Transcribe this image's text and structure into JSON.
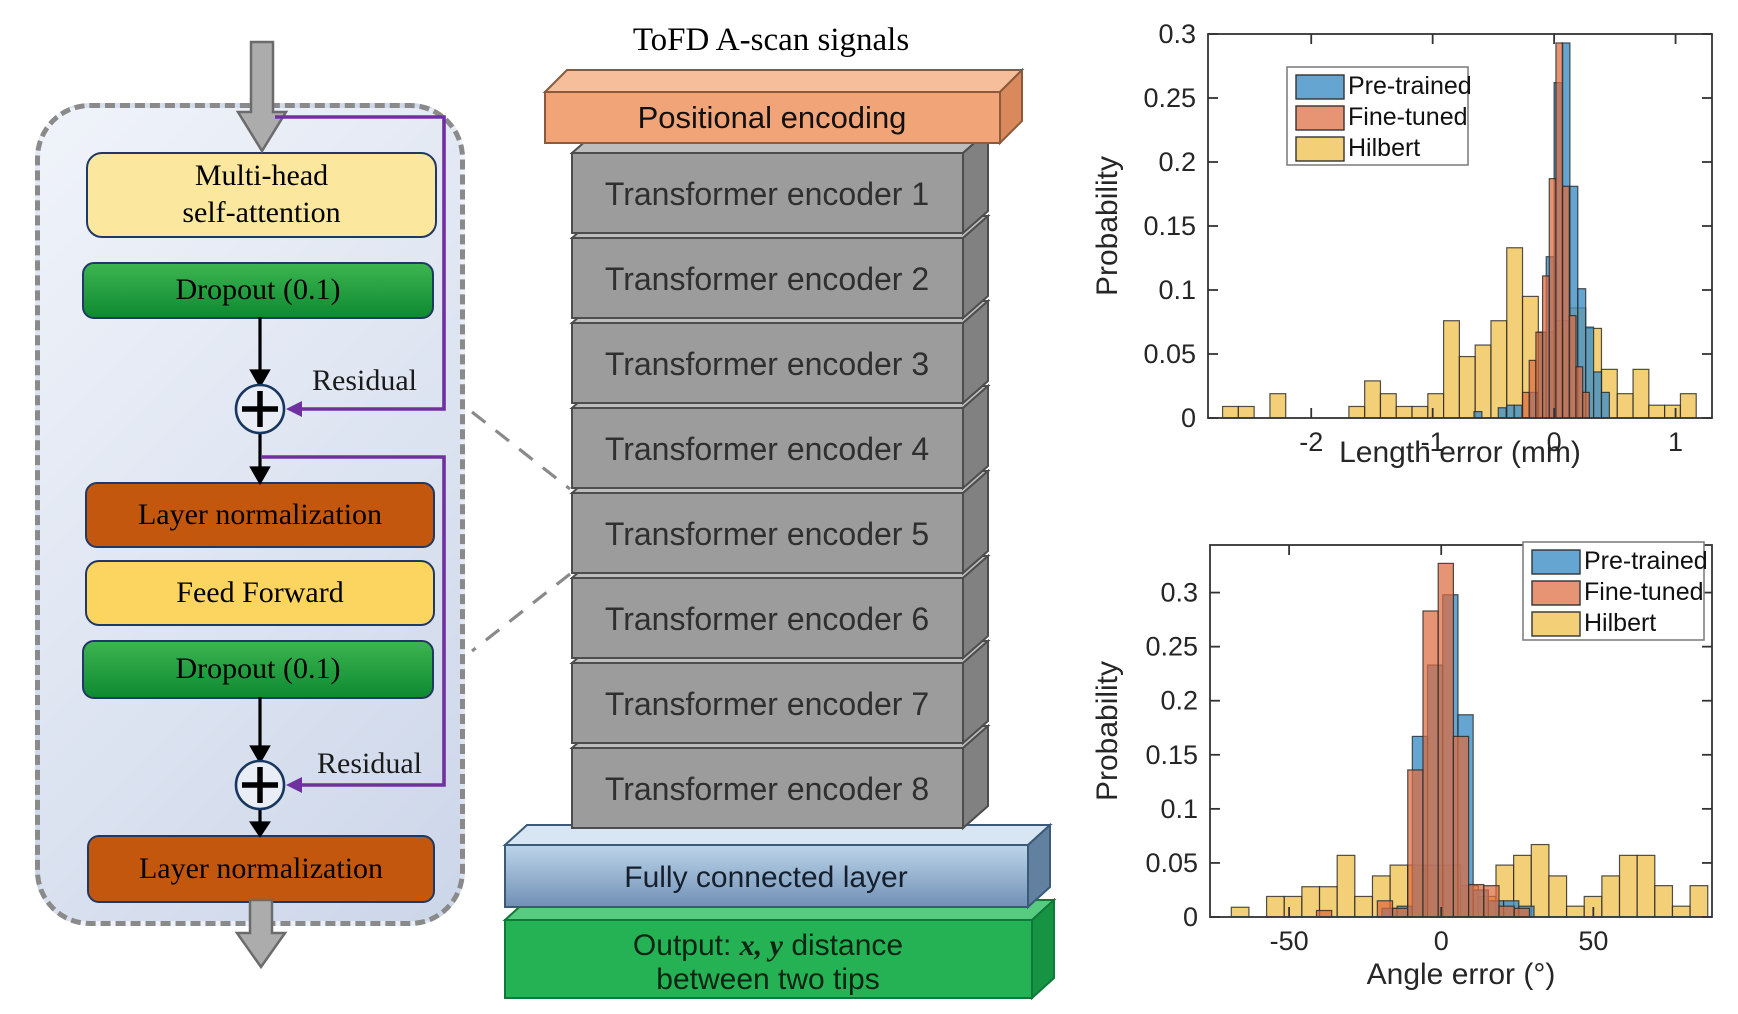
{
  "left_block": {
    "mha_line1": "Multi-head",
    "mha_line2": "self-attention",
    "dropout1": "Dropout (0.1)",
    "residual1": "Residual",
    "layernorm1": "Layer normalization",
    "feed_forward": "Feed Forward",
    "dropout2": "Dropout (0.1)",
    "residual2": "Residual",
    "layernorm2": "Layer normalization"
  },
  "stack": {
    "title": "ToFD A-scan signals",
    "positional": "Positional encoding",
    "encoders": [
      "Transformer encoder 1",
      "Transformer encoder 2",
      "Transformer encoder 3",
      "Transformer encoder 4",
      "Transformer encoder 5",
      "Transformer encoder 6",
      "Transformer encoder 7",
      "Transformer encoder 8"
    ],
    "fully_connected": "Fully connected layer",
    "output_prefix": "Output: ",
    "output_math": "x, y",
    "output_suffix": " distance",
    "output_line2": "between two tips"
  },
  "colors": {
    "purple_residual_line": "#7030A0",
    "dashed_border": "#8A8A8A",
    "mha_fill": "#FBE79D",
    "dropout_fill": "#1E9E3E",
    "layernorm_fill": "#C4570E",
    "feedforward_fill": "#FBD55F",
    "encoder_slab": "#9C9C9C",
    "positional_slab": "#F1A478",
    "fully_connected_slab": "#8FB0CE",
    "output_slab": "#24B254",
    "pretrained": "#3F8FC5",
    "finetuned": "#DE6B3F",
    "hilbert": "#EFC04A"
  },
  "chart_data": [
    {
      "type": "bar",
      "subtype": "overlaid-histogram",
      "title": "",
      "xlabel": "Length error (mm)",
      "ylabel": "Probability",
      "xlim": [
        -2.85,
        1.3
      ],
      "ylim": [
        0,
        0.3
      ],
      "xticks": [
        -2,
        -1,
        0,
        1
      ],
      "yticks": [
        0,
        0.05,
        0.1,
        0.15,
        0.2,
        0.25,
        0.3
      ],
      "grid": false,
      "legend": [
        "Pre-trained",
        "Fine-tuned",
        "Hilbert"
      ],
      "legend_position": "upper-left-inset",
      "series": [
        {
          "name": "Hilbert",
          "color": "#EFC04A",
          "alpha": 0.75,
          "bin_width": 0.13,
          "bars": [
            [
              -2.73,
              0.009
            ],
            [
              -2.6,
              0.009
            ],
            [
              -2.34,
              0.019
            ],
            [
              -1.69,
              0.009
            ],
            [
              -1.56,
              0.029
            ],
            [
              -1.43,
              0.019
            ],
            [
              -1.3,
              0.009
            ],
            [
              -1.17,
              0.009
            ],
            [
              -1.04,
              0.019
            ],
            [
              -0.91,
              0.076
            ],
            [
              -0.78,
              0.048
            ],
            [
              -0.65,
              0.057
            ],
            [
              -0.52,
              0.076
            ],
            [
              -0.39,
              0.133
            ],
            [
              -0.26,
              0.095
            ],
            [
              -0.13,
              0.067
            ],
            [
              0.0,
              0.076
            ],
            [
              0.13,
              0.086
            ],
            [
              0.26,
              0.07
            ],
            [
              0.39,
              0.038
            ],
            [
              0.52,
              0.019
            ],
            [
              0.65,
              0.038
            ],
            [
              0.78,
              0.01
            ],
            [
              0.91,
              0.01
            ],
            [
              1.04,
              0.019
            ]
          ]
        },
        {
          "name": "Pre-trained",
          "color": "#3F8FC5",
          "alpha": 0.8,
          "bin_width": 0.065,
          "bars": [
            [
              -0.66,
              0.005
            ],
            [
              -0.46,
              0.008
            ],
            [
              -0.39,
              0.01
            ],
            [
              -0.33,
              0.01
            ],
            [
              -0.2,
              0.02
            ],
            [
              -0.13,
              0.067
            ],
            [
              -0.065,
              0.126
            ],
            [
              0.0,
              0.262
            ],
            [
              0.065,
              0.293
            ],
            [
              0.13,
              0.181
            ],
            [
              0.195,
              0.101
            ],
            [
              0.26,
              0.071
            ],
            [
              0.325,
              0.036
            ],
            [
              0.39,
              0.02
            ]
          ]
        },
        {
          "name": "Fine-tuned",
          "color": "#DE6B3F",
          "alpha": 0.72,
          "bin_width": 0.055,
          "bars": [
            [
              -0.26,
              0.02
            ],
            [
              -0.205,
              0.045
            ],
            [
              -0.15,
              0.067
            ],
            [
              -0.095,
              0.111
            ],
            [
              -0.04,
              0.187
            ],
            [
              0.015,
              0.293
            ],
            [
              0.07,
              0.181
            ],
            [
              0.125,
              0.08
            ],
            [
              0.18,
              0.04
            ],
            [
              0.235,
              0.02
            ]
          ]
        }
      ]
    },
    {
      "type": "bar",
      "subtype": "overlaid-histogram",
      "title": "",
      "xlabel": "Angle error (°)",
      "ylabel": "Probability",
      "xlim": [
        -76,
        89
      ],
      "ylim": [
        0,
        0.344
      ],
      "xticks": [
        -50,
        0,
        50
      ],
      "yticks": [
        0,
        0.05,
        0.1,
        0.15,
        0.2,
        0.25,
        0.3
      ],
      "grid": false,
      "legend": [
        "Pre-trained",
        "Fine-tuned",
        "Hilbert"
      ],
      "legend_position": "upper-right-inset",
      "series": [
        {
          "name": "Hilbert",
          "color": "#EFC04A",
          "alpha": 0.75,
          "bin_width": 5.8,
          "bars": [
            [
              -69,
              0.009
            ],
            [
              -57.4,
              0.019
            ],
            [
              -51.6,
              0.019
            ],
            [
              -45.8,
              0.028
            ],
            [
              -40,
              0.028
            ],
            [
              -34.2,
              0.057
            ],
            [
              -28.4,
              0.019
            ],
            [
              -22.6,
              0.038
            ],
            [
              -16.8,
              0.048
            ],
            [
              -11,
              0.048
            ],
            [
              -5.2,
              0.048
            ],
            [
              0.6,
              0.048
            ],
            [
              6.4,
              0.029
            ],
            [
              12.2,
              0.019
            ],
            [
              18,
              0.048
            ],
            [
              23.8,
              0.057
            ],
            [
              29.6,
              0.067
            ],
            [
              35.4,
              0.038
            ],
            [
              41.2,
              0.01
            ],
            [
              47,
              0.019
            ],
            [
              52.8,
              0.038
            ],
            [
              58.6,
              0.057
            ],
            [
              64.4,
              0.057
            ],
            [
              70.2,
              0.029
            ],
            [
              76,
              0.01
            ],
            [
              81.8,
              0.029
            ]
          ]
        },
        {
          "name": "Pre-trained",
          "color": "#3F8FC5",
          "alpha": 0.8,
          "bin_width": 5,
          "bars": [
            [
              -19.5,
              0.008
            ],
            [
              -14.5,
              0.01
            ],
            [
              -9.5,
              0.167
            ],
            [
              -4.5,
              0.233
            ],
            [
              0.5,
              0.298
            ],
            [
              5.5,
              0.187
            ],
            [
              10.5,
              0.025
            ],
            [
              15.5,
              0.015
            ],
            [
              20.5,
              0.015
            ],
            [
              25.5,
              0.01
            ]
          ]
        },
        {
          "name": "Fine-tuned",
          "color": "#DE6B3F",
          "alpha": 0.72,
          "bin_width": 5,
          "bars": [
            [
              -41,
              0.006
            ],
            [
              -21,
              0.015
            ],
            [
              -16,
              0.008
            ],
            [
              -11,
              0.136
            ],
            [
              -6,
              0.283
            ],
            [
              -1,
              0.327
            ],
            [
              4,
              0.167
            ],
            [
              9,
              0.03
            ],
            [
              14,
              0.029
            ],
            [
              19,
              0.01
            ],
            [
              24,
              0.008
            ]
          ]
        }
      ]
    }
  ]
}
